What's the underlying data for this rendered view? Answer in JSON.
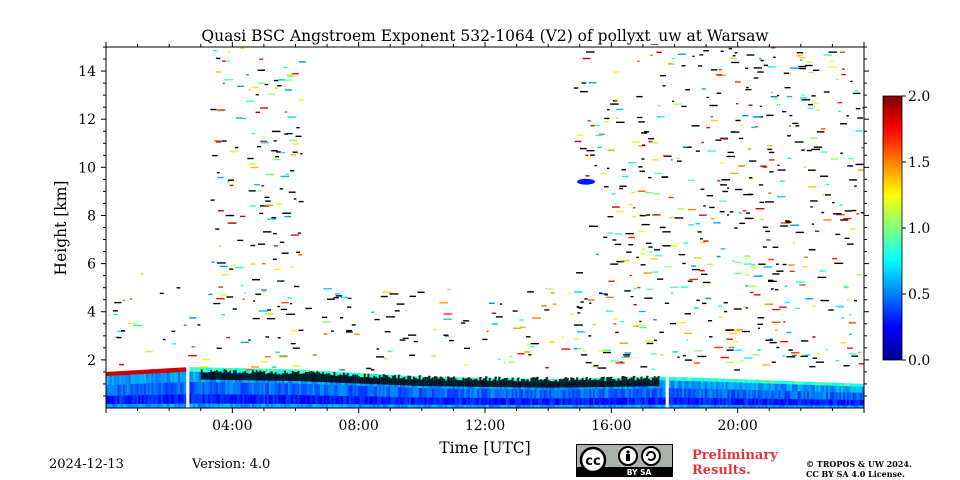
{
  "chart_data": {
    "type": "heatmap",
    "title": "Quasi BSC Angstroem Exponent 532-1064 (V2) of pollyxt_uw at Warsaw",
    "xlabel": "Time [UTC]",
    "ylabel": "Height [km]",
    "xlim": [
      0,
      24
    ],
    "ylim": [
      0,
      15
    ],
    "x_ticks": [
      "04:00",
      "08:00",
      "12:00",
      "16:00",
      "20:00"
    ],
    "x_tick_values": [
      4,
      8,
      12,
      16,
      20
    ],
    "y_ticks": [
      "2",
      "4",
      "6",
      "8",
      "10",
      "12",
      "14"
    ],
    "y_tick_values": [
      2,
      4,
      6,
      8,
      10,
      12,
      14
    ],
    "colorbar": {
      "min": 0.0,
      "max": 2.0,
      "ticks": [
        "0.0",
        "0.5",
        "1.0",
        "1.5",
        "2.0"
      ],
      "tick_values": [
        0,
        0.5,
        1.0,
        1.5,
        2.0
      ],
      "colormap": "jet"
    },
    "data_gaps_hours": [
      [
        2.5,
        2.6
      ],
      [
        17.7,
        17.8
      ]
    ],
    "boundary_layer_top_km": [
      [
        0,
        1.5
      ],
      [
        2.6,
        1.7
      ],
      [
        6,
        1.6
      ],
      [
        10,
        1.3
      ],
      [
        14,
        1.2
      ],
      [
        17.7,
        1.3
      ],
      [
        20,
        1.2
      ],
      [
        24,
        1.0
      ]
    ],
    "noisy_region_time_ranges": [
      [
        3.3,
        6.2
      ],
      [
        14.8,
        24
      ]
    ],
    "aerosol_patch": {
      "time": 15.2,
      "height_km": 9.4,
      "value": 0.3
    }
  },
  "footer": {
    "date": "2024-12-13",
    "version": "Version: 4.0",
    "license_badge": "BY SA",
    "preliminary": "Preliminary Results.",
    "copyright_line1": "© TROPOS & UW 2024.",
    "copyright_line2": "CC BY SA 4.0 License."
  },
  "colors": {
    "no_data": "#ffffff",
    "boundary_layer_dark": "#000000"
  }
}
